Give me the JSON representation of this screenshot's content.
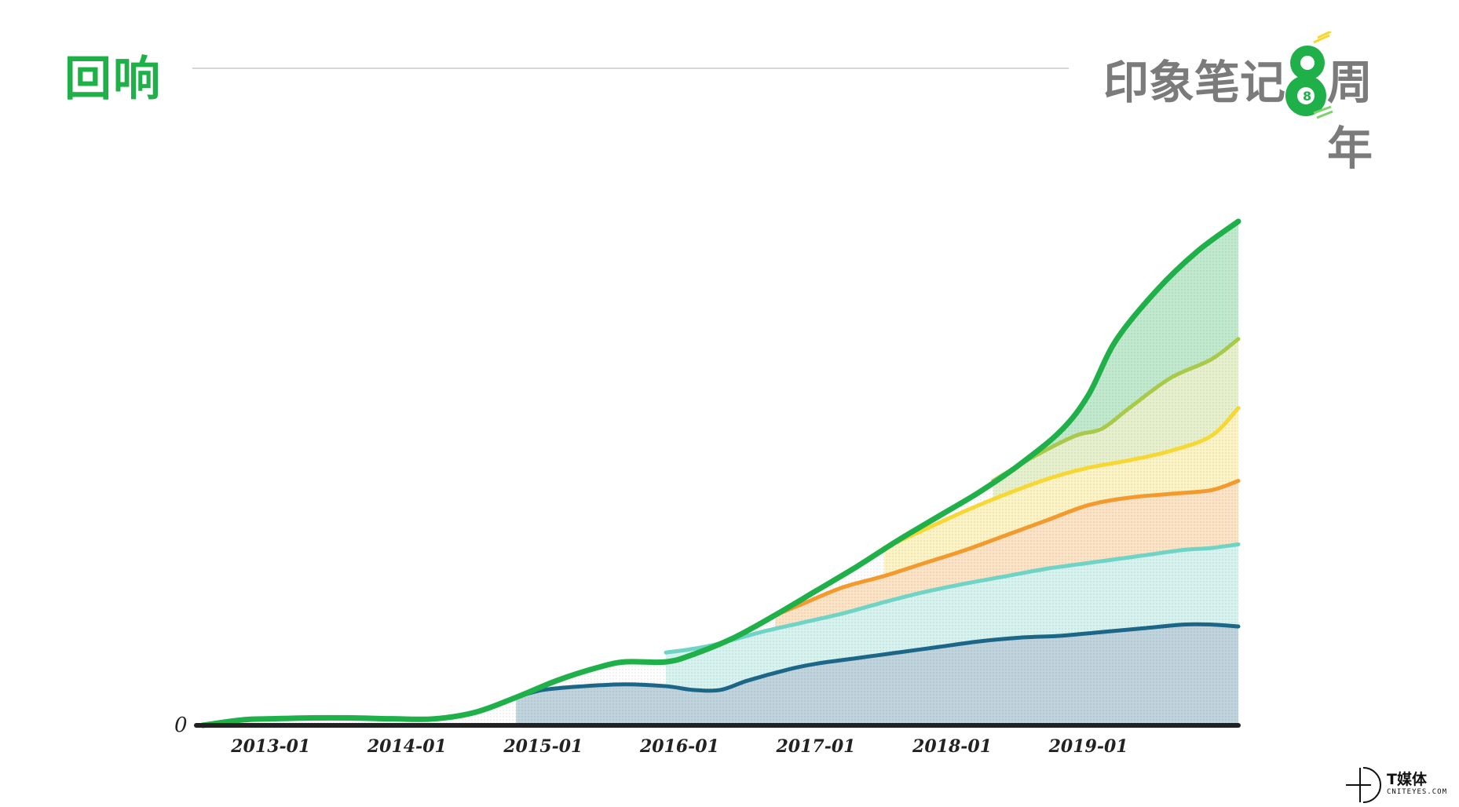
{
  "header": {
    "title": "回响",
    "brand_left": "印象笔记",
    "brand_numeral": "8",
    "brand_right": "周年"
  },
  "footer": {
    "brand_cn": "T媒体",
    "brand_en": "CNITEYES.COM"
  },
  "colors": {
    "green": "#1fb04a",
    "lime": "#a8c94a",
    "yellow": "#f7d733",
    "orange": "#f39a2e",
    "teal": "#6fd3c6",
    "navy": "#1c6687",
    "axis": "#222222"
  },
  "chart_data": {
    "type": "area",
    "title": "",
    "xlabel": "",
    "ylabel": "",
    "x_tick_labels": [
      "2013-01",
      "2014-01",
      "2015-01",
      "2016-01",
      "2017-01",
      "2018-01",
      "2019-01"
    ],
    "y_tick_labels": [
      "0"
    ],
    "x_range": [
      2012.5,
      2020.1
    ],
    "ylim": [
      0,
      540
    ],
    "grid": false,
    "legend": "none",
    "series": [
      {
        "color": "#1c6687",
        "points": [
          [
            2014.8,
            30
          ],
          [
            2015.0,
            38
          ],
          [
            2015.3,
            42
          ],
          [
            2015.6,
            44
          ],
          [
            2015.9,
            42
          ],
          [
            2016.1,
            38
          ],
          [
            2016.3,
            38
          ],
          [
            2016.5,
            48
          ],
          [
            2016.8,
            60
          ],
          [
            2017.0,
            66
          ],
          [
            2017.3,
            72
          ],
          [
            2017.6,
            78
          ],
          [
            2017.9,
            84
          ],
          [
            2018.2,
            90
          ],
          [
            2018.5,
            94
          ],
          [
            2018.8,
            96
          ],
          [
            2019.1,
            100
          ],
          [
            2019.4,
            104
          ],
          [
            2019.7,
            108
          ],
          [
            2019.9,
            108
          ],
          [
            2020.1,
            106
          ]
        ]
      },
      {
        "color": "#6fd3c6",
        "points": [
          [
            2015.9,
            78
          ],
          [
            2016.1,
            82
          ],
          [
            2016.3,
            88
          ],
          [
            2016.6,
            100
          ],
          [
            2016.9,
            110
          ],
          [
            2017.2,
            120
          ],
          [
            2017.5,
            132
          ],
          [
            2017.8,
            143
          ],
          [
            2018.1,
            152
          ],
          [
            2018.4,
            160
          ],
          [
            2018.7,
            168
          ],
          [
            2018.9,
            172
          ],
          [
            2019.1,
            176
          ],
          [
            2019.4,
            182
          ],
          [
            2019.7,
            188
          ],
          [
            2019.9,
            190
          ],
          [
            2020.1,
            194
          ]
        ]
      },
      {
        "color": "#f39a2e",
        "points": [
          [
            2016.7,
            118
          ],
          [
            2016.9,
            130
          ],
          [
            2017.2,
            148
          ],
          [
            2017.5,
            160
          ],
          [
            2017.8,
            174
          ],
          [
            2018.1,
            188
          ],
          [
            2018.4,
            204
          ],
          [
            2018.7,
            220
          ],
          [
            2019.0,
            236
          ],
          [
            2019.3,
            244
          ],
          [
            2019.6,
            248
          ],
          [
            2019.9,
            252
          ],
          [
            2020.1,
            262
          ]
        ]
      },
      {
        "color": "#f7d733",
        "points": [
          [
            2017.5,
            190
          ],
          [
            2017.8,
            210
          ],
          [
            2018.1,
            230
          ],
          [
            2018.4,
            248
          ],
          [
            2018.7,
            264
          ],
          [
            2019.0,
            276
          ],
          [
            2019.3,
            284
          ],
          [
            2019.6,
            294
          ],
          [
            2019.9,
            310
          ],
          [
            2020.1,
            340
          ]
        ]
      },
      {
        "color": "#a8c94a",
        "points": [
          [
            2018.3,
            262
          ],
          [
            2018.6,
            288
          ],
          [
            2018.9,
            310
          ],
          [
            2019.1,
            318
          ],
          [
            2019.3,
            340
          ],
          [
            2019.6,
            372
          ],
          [
            2019.9,
            392
          ],
          [
            2020.1,
            414
          ]
        ]
      },
      {
        "color": "#1fb04a",
        "points": [
          [
            2012.5,
            0
          ],
          [
            2012.8,
            6
          ],
          [
            2013.0,
            7
          ],
          [
            2013.3,
            8
          ],
          [
            2013.6,
            8
          ],
          [
            2013.9,
            7
          ],
          [
            2014.2,
            7
          ],
          [
            2014.5,
            14
          ],
          [
            2014.8,
            30
          ],
          [
            2015.1,
            48
          ],
          [
            2015.4,
            62
          ],
          [
            2015.6,
            68
          ],
          [
            2015.9,
            68
          ],
          [
            2016.1,
            76
          ],
          [
            2016.4,
            94
          ],
          [
            2016.7,
            118
          ],
          [
            2017.0,
            144
          ],
          [
            2017.3,
            170
          ],
          [
            2017.6,
            198
          ],
          [
            2017.9,
            224
          ],
          [
            2018.2,
            250
          ],
          [
            2018.5,
            280
          ],
          [
            2018.8,
            316
          ],
          [
            2019.0,
            354
          ],
          [
            2019.2,
            412
          ],
          [
            2019.5,
            466
          ],
          [
            2019.8,
            508
          ],
          [
            2020.1,
            540
          ]
        ]
      }
    ]
  }
}
